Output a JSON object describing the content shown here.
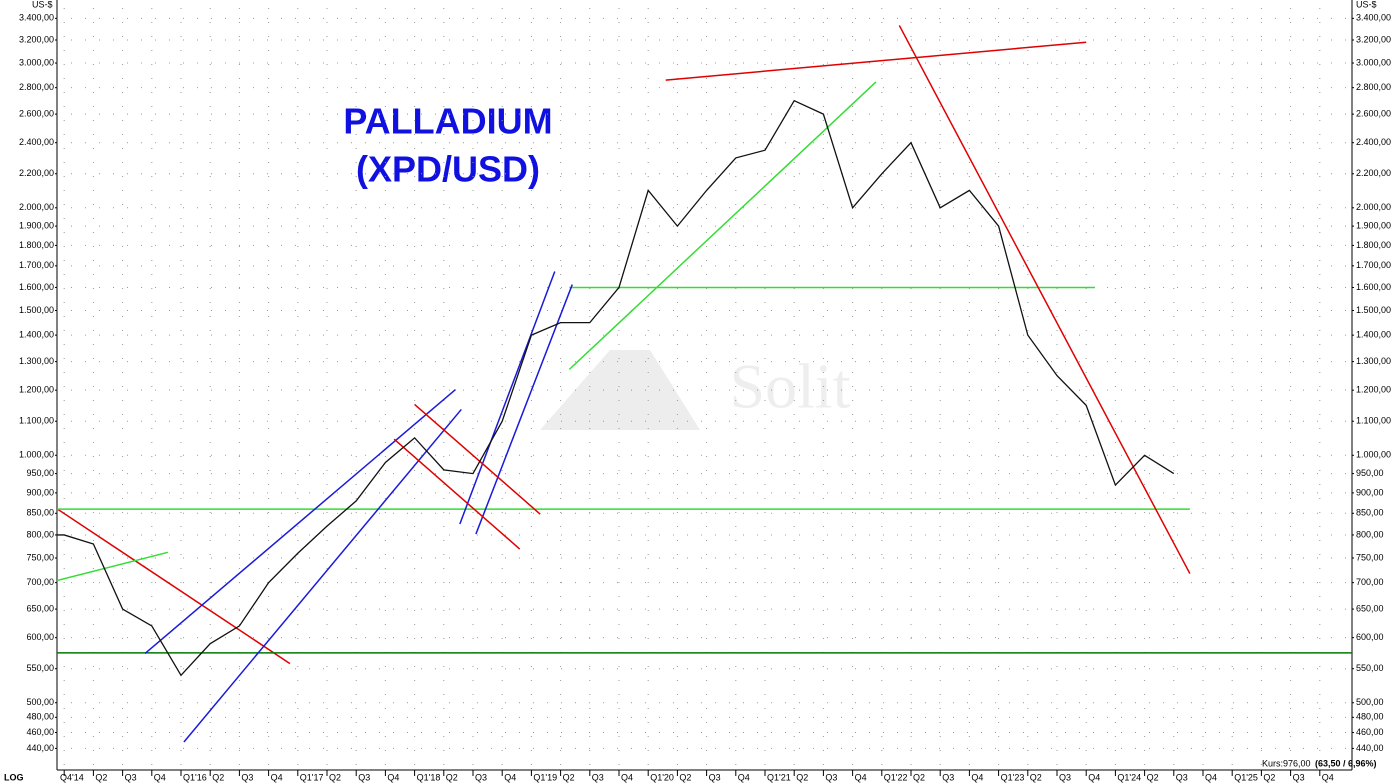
{
  "chart_data": {
    "type": "line",
    "title": "PALLADIUM",
    "subtitle": "(XPD/USD)",
    "y_label": "US-$",
    "scale_label": "LOG",
    "log_scale": true,
    "grid": true,
    "watermark": "Solit",
    "price_label": {
      "text": "Kurs:976,00",
      "change": "(63,50 / 6,96%)"
    },
    "categories": [
      "Q4'14",
      null,
      "Q2",
      "Q3",
      "Q4",
      "Q1'16",
      "Q2",
      "Q3",
      "Q4",
      "Q1'17",
      "Q2",
      "Q3",
      "Q4",
      "Q1'18",
      "Q2",
      "Q3",
      "Q4",
      "Q1'19",
      "Q2",
      "Q3",
      "Q4",
      "Q1'20",
      "Q2",
      "Q3",
      "Q4",
      "Q1'21",
      "Q2",
      "Q3",
      "Q4",
      "Q1'22",
      "Q2",
      "Q3",
      "Q4",
      "Q1'23",
      "Q2",
      "Q3",
      "Q4",
      "Q1'24",
      "Q2",
      "Q3",
      "Q4",
      "Q1'25",
      "Q2",
      "Q3",
      "Q4"
    ],
    "series": [
      {
        "name": "XPD/USD",
        "color": "#111111",
        "values": [
          800,
          800,
          780,
          650,
          620,
          540,
          590,
          620,
          700,
          760,
          820,
          880,
          980,
          1050,
          960,
          950,
          1100,
          1400,
          1450,
          1450,
          1600,
          2100,
          1900,
          2100,
          2300,
          2350,
          2700,
          2600,
          2000,
          2200,
          2400,
          2000,
          2100,
          1900,
          1400,
          1250,
          1150,
          920,
          1000,
          950,
          null,
          null,
          null,
          null,
          null
        ]
      }
    ],
    "trendlines": [
      {
        "color": "#e00000",
        "x": [
          0.75,
          8.73
        ],
        "y": [
          861,
          558
        ]
      },
      {
        "color": "#33dd33",
        "x": [
          0.75,
          39.55
        ],
        "y": [
          860,
          860
        ]
      },
      {
        "color": "#007a00",
        "x": [
          0.75,
          45.1
        ],
        "y": [
          575,
          575
        ]
      },
      {
        "color": "#33dd33",
        "x": [
          18.3,
          36.3
        ],
        "y": [
          1600,
          1600
        ]
      },
      {
        "color": "#e00000",
        "x": [
          21.6,
          36.0
        ],
        "y": [
          2860,
          3180
        ]
      },
      {
        "color": "#e00000",
        "x": [
          29.6,
          39.55
        ],
        "y": [
          3333,
          718
        ]
      },
      {
        "color": "#33dd33",
        "x": [
          18.3,
          28.8
        ],
        "y": [
          1272,
          2845
        ]
      },
      {
        "color": "#1a1adc",
        "x": [
          3.77,
          14.4
        ],
        "y": [
          574,
          1202
        ]
      },
      {
        "color": "#1a1adc",
        "x": [
          5.1,
          14.6
        ],
        "y": [
          448,
          1137
        ]
      },
      {
        "color": "#1a1adc",
        "x": [
          14.55,
          17.8
        ],
        "y": [
          825,
          1673
        ]
      },
      {
        "color": "#1a1adc",
        "x": [
          15.1,
          18.4
        ],
        "y": [
          802,
          1613
        ]
      },
      {
        "color": "#e00000",
        "x": [
          13.0,
          17.3
        ],
        "y": [
          1153,
          848
        ]
      },
      {
        "color": "#e00000",
        "x": [
          12.3,
          16.6
        ],
        "y": [
          1046,
          769
        ]
      },
      {
        "color": "#33dd33",
        "x": [
          0.75,
          4.55
        ],
        "y": [
          704,
          762
        ]
      }
    ],
    "ylim": [
      420,
      3500
    ],
    "yticks": [
      {
        "value": 440,
        "label": "440,00"
      },
      {
        "value": 460,
        "label": "460,00"
      },
      {
        "value": 480,
        "label": "480,00"
      },
      {
        "value": 500,
        "label": "500,00"
      },
      {
        "value": 550,
        "label": "550,00"
      },
      {
        "value": 600,
        "label": "600,00"
      },
      {
        "value": 650,
        "label": "650,00"
      },
      {
        "value": 700,
        "label": "700,00"
      },
      {
        "value": 750,
        "label": "750,00"
      },
      {
        "value": 800,
        "label": "800,00"
      },
      {
        "value": 850,
        "label": "850,00"
      },
      {
        "value": 900,
        "label": "900,00"
      },
      {
        "value": 950,
        "label": "950,00"
      },
      {
        "value": 1000,
        "label": "1.000,00"
      },
      {
        "value": 1100,
        "label": "1.100,00"
      },
      {
        "value": 1200,
        "label": "1.200,00"
      },
      {
        "value": 1300,
        "label": "1.300,00"
      },
      {
        "value": 1400,
        "label": "1.400,00"
      },
      {
        "value": 1500,
        "label": "1.500,00"
      },
      {
        "value": 1600,
        "label": "1.600,00"
      },
      {
        "value": 1700,
        "label": "1.700,00"
      },
      {
        "value": 1800,
        "label": "1.800,00"
      },
      {
        "value": 1900,
        "label": "1.900,00"
      },
      {
        "value": 2000,
        "label": "2.000,00"
      },
      {
        "value": 2200,
        "label": "2.200,00"
      },
      {
        "value": 2400,
        "label": "2.400,00"
      },
      {
        "value": 2600,
        "label": "2.600,00"
      },
      {
        "value": 2800,
        "label": "2.800,00"
      },
      {
        "value": 3000,
        "label": "3.000,00"
      },
      {
        "value": 3200,
        "label": "3.200,00"
      },
      {
        "value": 3400,
        "label": "3.400,00"
      }
    ]
  }
}
